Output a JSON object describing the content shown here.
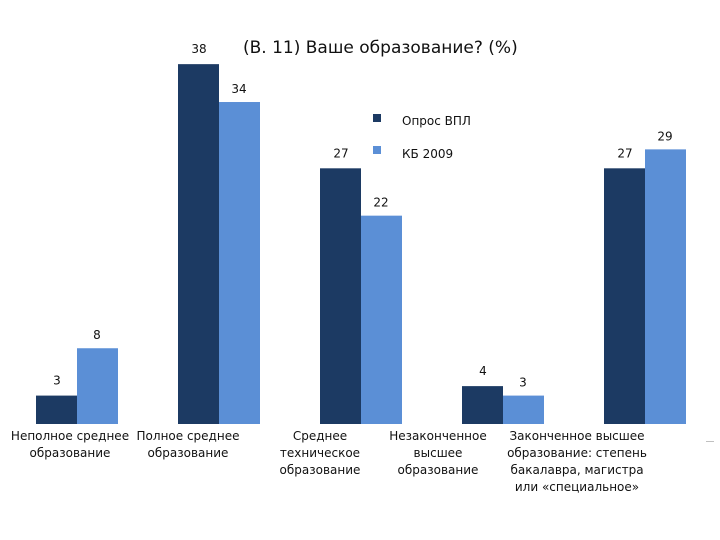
{
  "chart_data": {
    "type": "bar",
    "title": "(В. 11) Ваше образование? (%)",
    "categories": [
      "Неполное среднее\nобразование",
      "Полное среднее\nобразование",
      "Среднее\nтехническое\nобразование",
      "Незаконченное\nвысшее\nобразование",
      "Законченное высшее\nобразование: степень\nбакалавра, магистра\nили «специальное»"
    ],
    "series": [
      {
        "name": "Опрос ВПЛ",
        "values": [
          3,
          38,
          27,
          4,
          27
        ],
        "color": "#1c3a63"
      },
      {
        "name": "КБ 2009",
        "values": [
          8,
          34,
          22,
          3,
          29
        ],
        "color": "#5b8fd6"
      }
    ],
    "ylim": [
      0,
      40
    ],
    "grid": false,
    "legend": "top-right"
  }
}
